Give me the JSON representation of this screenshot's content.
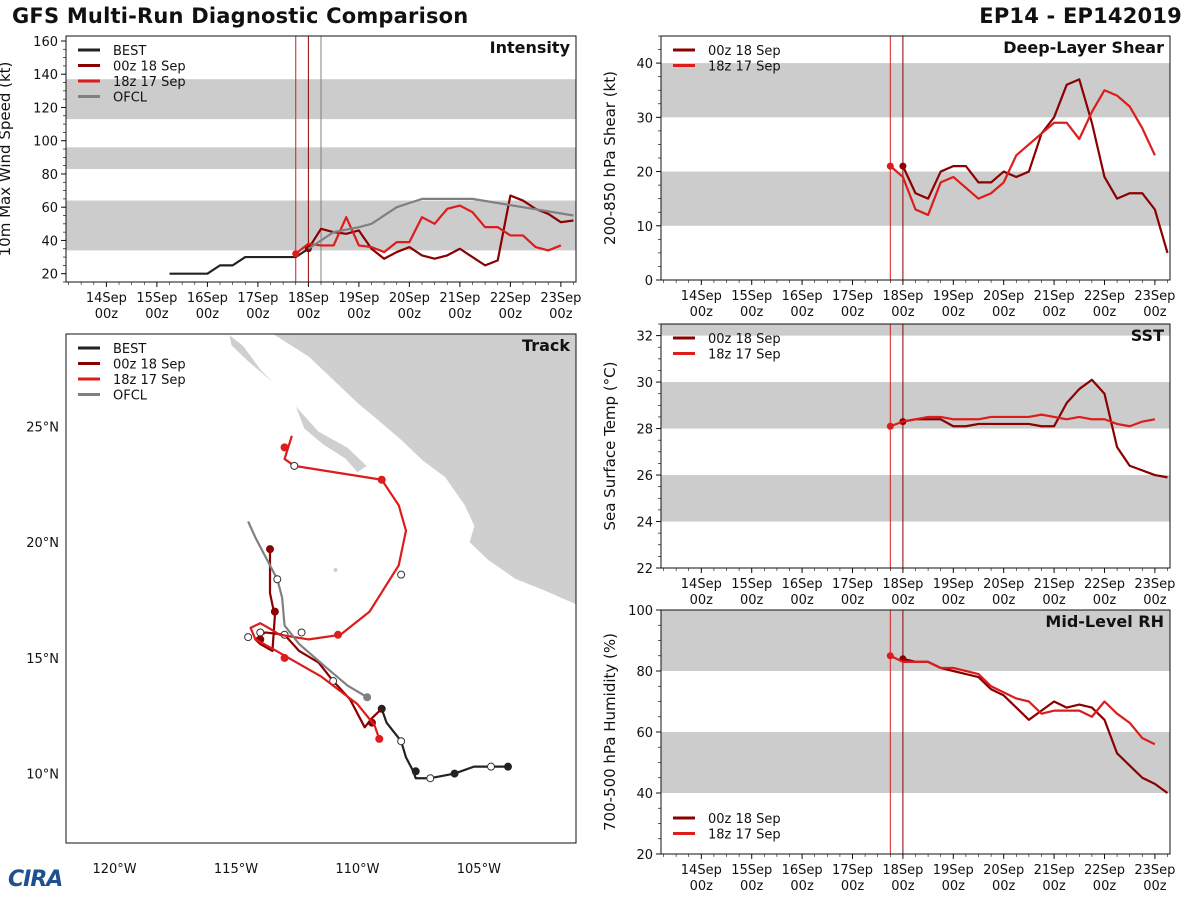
{
  "header": {
    "title": "GFS Multi-Run Diagnostic Comparison",
    "storm": "EP14 - EP142019"
  },
  "logo_text": "CIRA",
  "colors": {
    "best": "#222222",
    "run00z": "#8b0000",
    "run18z": "#dd1c1c",
    "ofcl": "#808080",
    "band": "#cccccc"
  },
  "x_ticks": [
    "14Sep\n00z",
    "15Sep\n00z",
    "16Sep\n00z",
    "17Sep\n00z",
    "18Sep\n00z",
    "19Sep\n00z",
    "20Sep\n00z",
    "21Sep\n00z",
    "22Sep\n00z",
    "23Sep\n00z"
  ],
  "chart_data": [
    {
      "id": "intensity",
      "type": "line",
      "title": "Intensity",
      "ylabel": "10m Max Wind Speed (kt)",
      "xlim": [
        13.2,
        23.3
      ],
      "ylim": [
        15,
        163
      ],
      "yticks": [
        20,
        40,
        60,
        80,
        100,
        120,
        140,
        160
      ],
      "bands": [
        [
          34,
          64
        ],
        [
          83,
          96
        ],
        [
          113,
          137
        ]
      ],
      "vlines": [
        {
          "x": 17.75,
          "series": "run18z"
        },
        {
          "x": 18.0,
          "series": "run00z"
        },
        {
          "x": 18.25,
          "series": "ofcl"
        }
      ],
      "legend": [
        "BEST",
        "00z 18 Sep",
        "18z 17 Sep",
        "OFCL"
      ],
      "series": [
        {
          "key": "best",
          "name": "BEST",
          "x": [
            15.25,
            15.5,
            15.75,
            16.0,
            16.25,
            16.5,
            16.75,
            17.0,
            17.25,
            17.5,
            17.75,
            18.0
          ],
          "y": [
            20,
            20,
            20,
            20,
            25,
            25,
            30,
            30,
            30,
            30,
            30,
            35
          ]
        },
        {
          "key": "run00z",
          "name": "00z 18 Sep",
          "x": [
            18.0,
            18.25,
            18.5,
            18.75,
            19.0,
            19.25,
            19.5,
            19.75,
            20.0,
            20.25,
            20.5,
            20.75,
            21.0,
            21.25,
            21.5,
            21.75,
            22.0,
            22.25,
            22.5,
            22.75,
            23.0,
            23.25
          ],
          "y": [
            35,
            47,
            45,
            44,
            46,
            35,
            29,
            33,
            36,
            31,
            29,
            31,
            35,
            30,
            25,
            28,
            67,
            64,
            59,
            56,
            51,
            52
          ]
        },
        {
          "key": "run18z",
          "name": "18z 17 Sep",
          "x": [
            17.75,
            18.0,
            18.25,
            18.5,
            18.75,
            19.0,
            19.25,
            19.5,
            19.75,
            20.0,
            20.25,
            20.5,
            20.75,
            21.0,
            21.25,
            21.5,
            21.75,
            22.0,
            22.25,
            22.5,
            22.75,
            23.0
          ],
          "y": [
            32,
            38,
            37,
            37,
            54,
            37,
            36,
            33,
            39,
            39,
            54,
            50,
            59,
            61,
            57,
            48,
            48,
            43,
            43,
            36,
            34,
            37
          ]
        },
        {
          "key": "ofcl",
          "name": "OFCL",
          "x": [
            18.0,
            18.5,
            19.0,
            19.25,
            19.75,
            20.25,
            21.25,
            22.25,
            23.25
          ],
          "y": [
            35,
            45,
            48,
            50,
            60,
            65,
            65,
            60,
            55
          ]
        }
      ]
    },
    {
      "id": "shear",
      "type": "line",
      "title": "Deep-Layer Shear",
      "ylabel": "200-850 hPa Shear (kt)",
      "xlim": [
        13.2,
        23.3
      ],
      "ylim": [
        0,
        45
      ],
      "yticks": [
        0,
        10,
        20,
        30,
        40
      ],
      "bands": [
        [
          10,
          20
        ],
        [
          30,
          40
        ]
      ],
      "vlines": [
        {
          "x": 17.75,
          "series": "run18z"
        },
        {
          "x": 18.0,
          "series": "run00z"
        }
      ],
      "legend": [
        "00z 18 Sep",
        "18z 17 Sep"
      ],
      "series": [
        {
          "key": "run00z",
          "name": "00z 18 Sep",
          "x": [
            18.0,
            18.25,
            18.5,
            18.75,
            19.0,
            19.25,
            19.5,
            19.75,
            20.0,
            20.25,
            20.5,
            20.75,
            21.0,
            21.25,
            21.5,
            21.75,
            22.0,
            22.25,
            22.5,
            22.75,
            23.0,
            23.25
          ],
          "y": [
            21,
            16,
            15,
            20,
            21,
            21,
            18,
            18,
            20,
            19,
            20,
            27,
            30,
            36,
            37,
            29,
            19,
            15,
            16,
            16,
            13,
            5
          ]
        },
        {
          "key": "run18z",
          "name": "18z 17 Sep",
          "x": [
            17.75,
            18.0,
            18.25,
            18.5,
            18.75,
            19.0,
            19.25,
            19.5,
            19.75,
            20.0,
            20.25,
            20.5,
            20.75,
            21.0,
            21.25,
            21.5,
            21.75,
            22.0,
            22.25,
            22.5,
            22.75,
            23.0
          ],
          "y": [
            21,
            19,
            13,
            12,
            18,
            19,
            17,
            15,
            16,
            18,
            23,
            25,
            27,
            29,
            29,
            26,
            31,
            35,
            34,
            32,
            28,
            23
          ]
        }
      ]
    },
    {
      "id": "sst",
      "type": "line",
      "title": "SST",
      "ylabel": "Sea Surface Temp (°C)",
      "xlim": [
        13.2,
        23.3
      ],
      "ylim": [
        22,
        32.5
      ],
      "yticks": [
        22,
        24,
        26,
        28,
        30,
        32
      ],
      "bands": [
        [
          24,
          26
        ],
        [
          28,
          30
        ],
        [
          32,
          34
        ]
      ],
      "vlines": [
        {
          "x": 17.75,
          "series": "run18z"
        },
        {
          "x": 18.0,
          "series": "run00z"
        }
      ],
      "legend": [
        "00z 18 Sep",
        "18z 17 Sep"
      ],
      "series": [
        {
          "key": "run00z",
          "name": "00z 18 Sep",
          "x": [
            18.0,
            18.25,
            18.5,
            18.75,
            19.0,
            19.25,
            19.5,
            19.75,
            20.0,
            20.25,
            20.5,
            20.75,
            21.0,
            21.25,
            21.5,
            21.75,
            22.0,
            22.25,
            22.5,
            22.75,
            23.0,
            23.25
          ],
          "y": [
            28.3,
            28.4,
            28.4,
            28.4,
            28.1,
            28.1,
            28.2,
            28.2,
            28.2,
            28.2,
            28.2,
            28.1,
            28.1,
            29.1,
            29.7,
            30.1,
            29.5,
            27.2,
            26.4,
            26.2,
            26.0,
            25.9
          ]
        },
        {
          "key": "run18z",
          "name": "18z 17 Sep",
          "x": [
            17.75,
            18.0,
            18.25,
            18.5,
            18.75,
            19.0,
            19.25,
            19.5,
            19.75,
            20.0,
            20.25,
            20.5,
            20.75,
            21.0,
            21.25,
            21.5,
            21.75,
            22.0,
            22.25,
            22.5,
            22.75,
            23.0
          ],
          "y": [
            28.1,
            28.3,
            28.4,
            28.5,
            28.5,
            28.4,
            28.4,
            28.4,
            28.5,
            28.5,
            28.5,
            28.5,
            28.6,
            28.5,
            28.4,
            28.5,
            28.4,
            28.4,
            28.2,
            28.1,
            28.3,
            28.4
          ]
        }
      ]
    },
    {
      "id": "rh",
      "type": "line",
      "title": "Mid-Level RH",
      "ylabel": "700-500 hPa Humidity (%)",
      "xlim": [
        13.2,
        23.3
      ],
      "ylim": [
        20,
        100
      ],
      "yticks": [
        20,
        40,
        60,
        80,
        100
      ],
      "bands": [
        [
          40,
          60
        ],
        [
          80,
          100
        ]
      ],
      "vlines": [
        {
          "x": 17.75,
          "series": "run18z"
        },
        {
          "x": 18.0,
          "series": "run00z"
        }
      ],
      "legend": [
        "00z 18 Sep",
        "18z 17 Sep"
      ],
      "series": [
        {
          "key": "run00z",
          "name": "00z 18 Sep",
          "x": [
            18.0,
            18.25,
            18.5,
            18.75,
            19.0,
            19.25,
            19.5,
            19.75,
            20.0,
            20.25,
            20.5,
            20.75,
            21.0,
            21.25,
            21.5,
            21.75,
            22.0,
            22.25,
            22.5,
            22.75,
            23.0,
            23.25
          ],
          "y": [
            84,
            83,
            83,
            81,
            80,
            79,
            78,
            74,
            72,
            68,
            64,
            67,
            70,
            68,
            69,
            68,
            64,
            53,
            49,
            45,
            43,
            40
          ]
        },
        {
          "key": "run18z",
          "name": "18z 17 Sep",
          "x": [
            17.75,
            18.0,
            18.25,
            18.5,
            18.75,
            19.0,
            19.25,
            19.5,
            19.75,
            20.0,
            20.25,
            20.5,
            20.75,
            21.0,
            21.25,
            21.5,
            21.75,
            22.0,
            22.25,
            22.5,
            22.75,
            23.0
          ],
          "y": [
            85,
            83,
            83,
            83,
            81,
            81,
            80,
            79,
            75,
            73,
            71,
            70,
            66,
            67,
            67,
            67,
            65,
            70,
            66,
            63,
            58,
            56
          ]
        }
      ]
    },
    {
      "id": "track",
      "type": "line",
      "title": "Track",
      "xlabel": "",
      "ylabel": "",
      "xlim": [
        -122,
        -101
      ],
      "ylim": [
        7,
        29
      ],
      "xticks": [
        -120,
        -115,
        -110,
        -105
      ],
      "xtick_labels": [
        "120°W",
        "115°W",
        "110°W",
        "105°W"
      ],
      "yticks": [
        10,
        15,
        20,
        25
      ],
      "ytick_labels": [
        "10°N",
        "15°N",
        "20°N",
        "25°N"
      ],
      "legend": [
        "BEST",
        "00z 18 Sep",
        "18z 17 Sep",
        "OFCL"
      ],
      "series": [
        {
          "key": "best",
          "name": "BEST",
          "lon": [
            -103.8,
            -104.5,
            -105.2,
            -106.0,
            -107.0,
            -107.6,
            -107.7,
            -108.0,
            -108.2,
            -108.8,
            -109.0
          ],
          "lat": [
            10.3,
            10.3,
            10.3,
            10.0,
            9.8,
            9.8,
            10.1,
            10.7,
            11.4,
            12.2,
            12.8
          ],
          "markers": [
            {
              "lon": -103.8,
              "lat": 10.3,
              "filled": true
            },
            {
              "lon": -104.5,
              "lat": 10.3,
              "filled": false
            },
            {
              "lon": -106.0,
              "lat": 10.0,
              "filled": true
            },
            {
              "lon": -107.0,
              "lat": 9.8,
              "filled": false
            },
            {
              "lon": -107.6,
              "lat": 10.1,
              "filled": true
            },
            {
              "lon": -108.2,
              "lat": 11.4,
              "filled": false
            },
            {
              "lon": -109.0,
              "lat": 12.8,
              "filled": true
            }
          ]
        },
        {
          "key": "run00z",
          "name": "00z 18 Sep",
          "lon": [
            -109.0,
            -109.4,
            -109.7,
            -110.3,
            -111.0,
            -111.6,
            -112.4,
            -113.0,
            -113.8,
            -114.2,
            -114.0,
            -113.5,
            -113.4,
            -113.6,
            -113.6
          ],
          "lat": [
            12.8,
            12.4,
            12.0,
            13.2,
            14.0,
            14.8,
            15.3,
            16.0,
            16.1,
            15.8,
            15.6,
            15.3,
            16.8,
            17.8,
            19.7
          ],
          "markers": [
            {
              "lon": -109.4,
              "lat": 12.2,
              "filled": true
            },
            {
              "lon": -111.0,
              "lat": 14.0,
              "filled": false
            },
            {
              "lon": -113.0,
              "lat": 16.0,
              "filled": false
            },
            {
              "lon": -114.0,
              "lat": 16.1,
              "filled": false
            },
            {
              "lon": -114.0,
              "lat": 15.8,
              "filled": true
            },
            {
              "lon": -113.4,
              "lat": 17.0,
              "filled": true
            },
            {
              "lon": -113.6,
              "lat": 19.7,
              "filled": true
            }
          ]
        },
        {
          "key": "run18z",
          "name": "18z 17 Sep",
          "lon": [
            -109.1,
            -109.3,
            -110.0,
            -111.5,
            -112.5,
            -113.5,
            -114.2,
            -114.4,
            -114.0,
            -113.5,
            -113.2,
            -112.0,
            -110.7,
            -109.5,
            -108.3,
            -108.0,
            -108.3,
            -109.0,
            -112.6,
            -113.0,
            -112.7
          ],
          "lat": [
            11.5,
            12.1,
            13.0,
            14.2,
            14.8,
            15.4,
            15.8,
            16.3,
            16.5,
            16.2,
            16.0,
            15.8,
            16.0,
            17.0,
            19.0,
            20.5,
            21.6,
            22.7,
            23.3,
            23.6,
            24.6
          ],
          "markers": [
            {
              "lon": -109.1,
              "lat": 11.5,
              "filled": true
            },
            {
              "lon": -113.0,
              "lat": 15.0,
              "filled": true
            },
            {
              "lon": -112.3,
              "lat": 16.1,
              "filled": false
            },
            {
              "lon": -110.8,
              "lat": 16.0,
              "filled": true
            },
            {
              "lon": -108.2,
              "lat": 18.6,
              "filled": false
            },
            {
              "lon": -109.0,
              "lat": 22.7,
              "filled": true
            },
            {
              "lon": -112.6,
              "lat": 23.3,
              "filled": false
            },
            {
              "lon": -113.0,
              "lat": 24.1,
              "filled": true
            }
          ]
        },
        {
          "key": "ofcl",
          "name": "OFCL",
          "lon": [
            -109.6,
            -110.4,
            -111.3,
            -112.4,
            -113.0,
            -113.1,
            -113.3,
            -113.8,
            -114.2,
            -114.5
          ],
          "lat": [
            13.3,
            13.8,
            14.6,
            15.6,
            16.4,
            17.6,
            18.4,
            19.4,
            20.2,
            20.9
          ],
          "markers": [
            {
              "lon": -109.6,
              "lat": 13.3,
              "filled": true
            },
            {
              "lon": -113.3,
              "lat": 18.4,
              "filled": false
            },
            {
              "lon": -114.5,
              "lat": 15.9,
              "filled": false
            }
          ]
        }
      ]
    }
  ]
}
